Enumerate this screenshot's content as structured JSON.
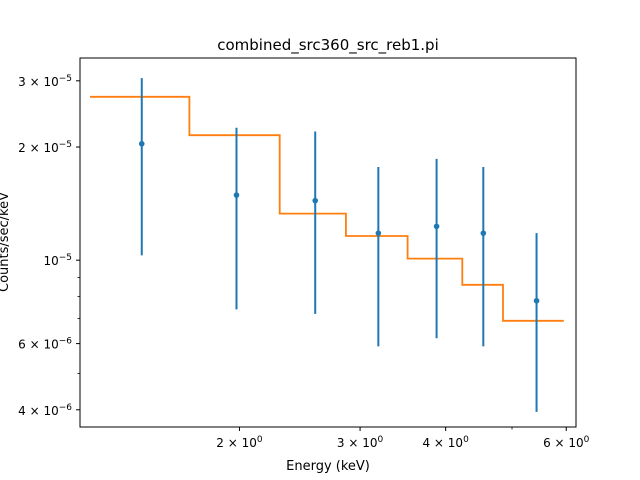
{
  "chart_data": {
    "type": "scatter",
    "title": "combined_src360_src_reb1.pi",
    "xlabel": "Energy (keV)",
    "ylabel": "Counts/sec/keV",
    "x_scale": "log",
    "y_scale": "log",
    "xlim": [
      1.17,
      6.2
    ],
    "ylim": [
      3.6e-06,
      3.45e-05
    ],
    "x_ticks": [
      {
        "value": 2,
        "base": "2 × 10",
        "exp": "0"
      },
      {
        "value": 3,
        "base": "3 × 10",
        "exp": "0"
      },
      {
        "value": 4,
        "base": "4 × 10",
        "exp": "0"
      },
      {
        "value": 6,
        "base": "6 × 10",
        "exp": "0"
      }
    ],
    "y_ticks": [
      {
        "value": 4e-06,
        "base": "4 × 10",
        "exp": "−6"
      },
      {
        "value": 6e-06,
        "base": "6 × 10",
        "exp": "−6"
      },
      {
        "value": 1e-05,
        "base": "10",
        "exp": "−5"
      },
      {
        "value": 2e-05,
        "base": "2 × 10",
        "exp": "−5"
      },
      {
        "value": 3e-05,
        "base": "3 × 10",
        "exp": "−5"
      }
    ],
    "y_minor_ticks": [
      5e-06,
      7e-06,
      8e-06,
      9e-06
    ],
    "x_minor_ticks": [
      5
    ],
    "series": [
      {
        "kind": "data_points",
        "color": "#1f77b4",
        "points": [
          {
            "x": 1.44,
            "y": 2.04e-05,
            "ylow": 1.03e-05,
            "yhigh": 3.05e-05
          },
          {
            "x": 1.98,
            "y": 1.49e-05,
            "ylow": 7.4e-06,
            "yhigh": 2.25e-05
          },
          {
            "x": 2.58,
            "y": 1.44e-05,
            "ylow": 7.2e-06,
            "yhigh": 2.2e-05
          },
          {
            "x": 3.19,
            "y": 1.18e-05,
            "ylow": 5.9e-06,
            "yhigh": 1.77e-05
          },
          {
            "x": 3.88,
            "y": 1.23e-05,
            "ylow": 6.2e-06,
            "yhigh": 1.86e-05
          },
          {
            "x": 4.54,
            "y": 1.18e-05,
            "ylow": 5.9e-06,
            "yhigh": 1.77e-05
          },
          {
            "x": 5.43,
            "y": 7.8e-06,
            "ylow": 3.95e-06,
            "yhigh": 1.18e-05
          }
        ]
      },
      {
        "kind": "model_step",
        "color": "#ff7f0e",
        "steps": [
          {
            "x0": 1.21,
            "x1": 1.69,
            "y": 2.72e-05
          },
          {
            "x0": 1.69,
            "x1": 2.29,
            "y": 2.15e-05
          },
          {
            "x0": 2.29,
            "x1": 2.86,
            "y": 1.33e-05
          },
          {
            "x0": 2.86,
            "x1": 3.52,
            "y": 1.16e-05
          },
          {
            "x0": 3.52,
            "x1": 4.23,
            "y": 1.01e-05
          },
          {
            "x0": 4.23,
            "x1": 4.85,
            "y": 8.6e-06
          },
          {
            "x0": 4.85,
            "x1": 5.95,
            "y": 6.9e-06
          }
        ]
      }
    ]
  }
}
